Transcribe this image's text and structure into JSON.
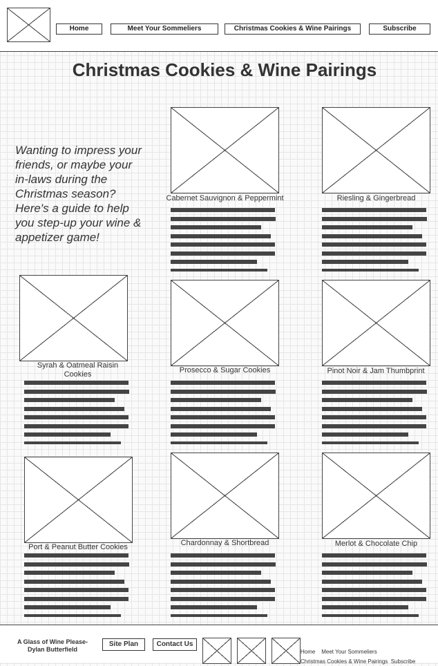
{
  "nav": {
    "home": "Home",
    "sommeliers": "Meet Your Sommeliers",
    "pairings": "Christmas Cookies & Wine Pairings",
    "subscribe": "Subscribe"
  },
  "page": {
    "title": "Christmas Cookies & Wine Pairings",
    "intro": "Wanting to impress your friends, or maybe your in-laws during the Christmas season? Here's a guide to help you step-up your wine & appetizer game!"
  },
  "pairings": [
    {
      "caption": "Cabernet Sauvignon & Peppermint"
    },
    {
      "caption": "Riesling & Gingerbread"
    },
    {
      "caption": "Syrah & Oatmeal Raisin Cookies"
    },
    {
      "caption": "Prosecco & Sugar Cookies"
    },
    {
      "caption": "Pinot Noir & Jam Thumbprint"
    },
    {
      "caption": "Port & Peanut Butter Cookies"
    },
    {
      "caption": "Chardonnay & Shortbread"
    },
    {
      "caption": "Merlot & Chocolate Chip"
    }
  ],
  "footer": {
    "brand": "A Glass of Wine Please- Dylan Butterfield",
    "site_plan": "Site Plan",
    "contact": "Contact Us",
    "links": {
      "home": "Home",
      "sommeliers": "Meet Your Sommeliers",
      "pairings": "Christmas Cookies & Wine Pairings",
      "subscribe": "Subscribe"
    }
  }
}
